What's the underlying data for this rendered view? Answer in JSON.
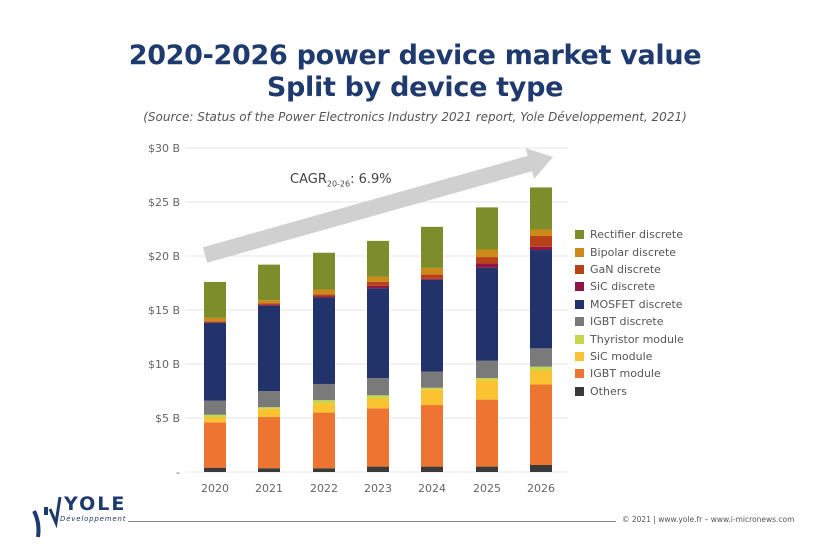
{
  "header": {
    "title_line1": "2020-2026 power device market value",
    "title_line2": "Split by device type",
    "source": "(Source: Status of the Power Electronics Industry 2021 report, Yole Développement, 2021)"
  },
  "annotation": {
    "cagr_prefix": "CAGR",
    "cagr_subscript": "20-26",
    "cagr_value": ": 6.9%"
  },
  "footer": {
    "logo_name": "YOLE",
    "logo_sub": "Développement",
    "copyright": "© 2021 | www.yole.fr – www.i-micronews.com"
  },
  "chart_data": {
    "type": "bar",
    "stacked": true,
    "title": "2020-2026 power device market value Split by device type",
    "xlabel": "",
    "ylabel": "",
    "categories": [
      "2020",
      "2021",
      "2022",
      "2023",
      "2024",
      "2025",
      "2026"
    ],
    "ylim": [
      0,
      30
    ],
    "yticks": [
      0,
      5,
      10,
      15,
      20,
      25,
      30
    ],
    "ytick_labels": [
      "-",
      "$5 B",
      "$10 B",
      "$15 B",
      "$20 B",
      "$25 B",
      "$30 B"
    ],
    "grid": true,
    "legend_position": "right",
    "series": [
      {
        "name": "Others",
        "color": "#3a3a3a",
        "values": [
          0.4,
          0.35,
          0.35,
          0.5,
          0.5,
          0.5,
          0.65
        ]
      },
      {
        "name": "IGBT module",
        "color": "#ed7431",
        "values": [
          4.2,
          4.75,
          5.15,
          5.4,
          5.7,
          6.2,
          7.45
        ]
      },
      {
        "name": "SiC module",
        "color": "#fbc232",
        "values": [
          0.45,
          0.75,
          0.85,
          0.9,
          1.45,
          1.8,
          1.3
        ]
      },
      {
        "name": "Thyristor module",
        "color": "#c5d74a",
        "values": [
          0.25,
          0.15,
          0.3,
          0.3,
          0.15,
          0.2,
          0.35
        ]
      },
      {
        "name": "IGBT discrete",
        "color": "#7a7a7a",
        "values": [
          1.3,
          1.5,
          1.5,
          1.6,
          1.5,
          1.6,
          1.7
        ]
      },
      {
        "name": "MOSFET discrete",
        "color": "#22336b",
        "values": [
          7.2,
          7.9,
          8.0,
          8.3,
          8.5,
          8.6,
          9.1
        ]
      },
      {
        "name": "SiC discrete",
        "color": "#8e1545",
        "values": [
          0.05,
          0.1,
          0.1,
          0.25,
          0.1,
          0.4,
          0.3
        ]
      },
      {
        "name": "GaN discrete",
        "color": "#b84218",
        "values": [
          0.1,
          0.1,
          0.2,
          0.35,
          0.4,
          0.6,
          1.0
        ]
      },
      {
        "name": "Bipolar discrete",
        "color": "#cc8a1a",
        "values": [
          0.35,
          0.3,
          0.45,
          0.5,
          0.6,
          0.7,
          0.6
        ]
      },
      {
        "name": "Rectifier discrete",
        "color": "#7d8d2c",
        "values": [
          3.3,
          3.3,
          3.4,
          3.3,
          3.8,
          3.9,
          3.9
        ]
      }
    ],
    "legend_order": [
      "Rectifier discrete",
      "Bipolar discrete",
      "GaN discrete",
      "SiC discrete",
      "MOSFET discrete",
      "IGBT discrete",
      "Thyristor module",
      "SiC module",
      "IGBT module",
      "Others"
    ],
    "annotations": [
      "CAGR20-26: 6.9%"
    ]
  }
}
